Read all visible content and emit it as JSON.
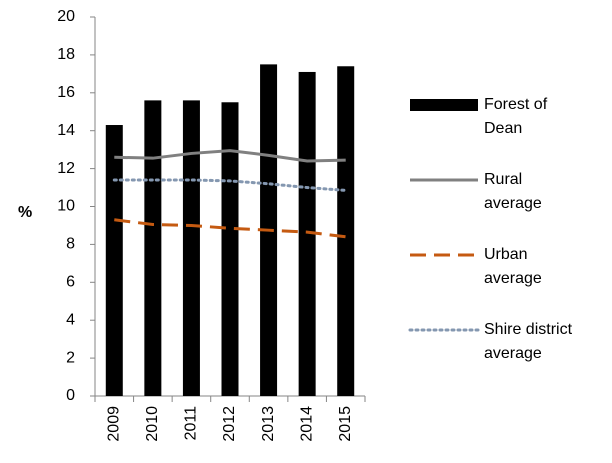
{
  "chart_data": {
    "type": "bar",
    "y_label": "%",
    "categories": [
      "2009",
      "2010",
      "2011",
      "2012",
      "2013",
      "2014",
      "2015"
    ],
    "series": [
      {
        "name": "Forest of Dean",
        "type": "bar",
        "color": "#000000",
        "values": [
          14.3,
          15.6,
          15.6,
          15.5,
          17.5,
          17.1,
          17.4
        ]
      },
      {
        "name": "Rural average",
        "type": "line",
        "style": "solid",
        "color": "#808080",
        "values": [
          12.6,
          12.55,
          12.8,
          12.95,
          12.7,
          12.4,
          12.45
        ]
      },
      {
        "name": "Urban average",
        "type": "line",
        "style": "dashed",
        "color": "#c55a11",
        "values": [
          9.3,
          9.05,
          9.0,
          8.85,
          8.75,
          8.65,
          8.4
        ]
      },
      {
        "name": "Shire district average",
        "type": "line",
        "style": "dotted",
        "color": "#8497b0",
        "values": [
          11.4,
          11.4,
          11.4,
          11.35,
          11.2,
          11.0,
          10.85
        ]
      }
    ],
    "ylim": [
      0,
      20
    ],
    "yticks": [
      0,
      2,
      4,
      6,
      8,
      10,
      12,
      14,
      16,
      18,
      20
    ],
    "legend": "right",
    "grid": false
  }
}
